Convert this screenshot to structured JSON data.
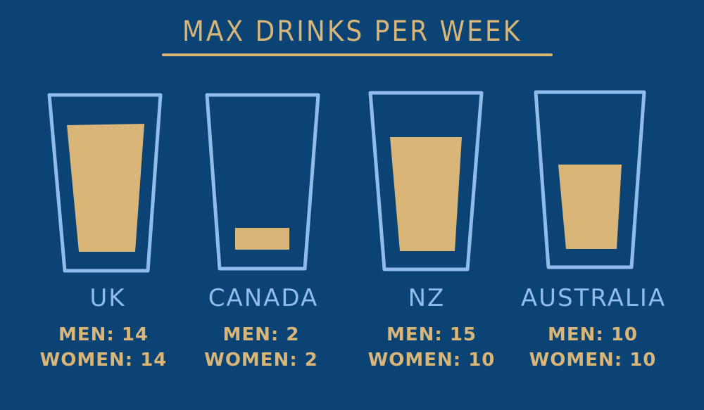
{
  "title": "MAX DRINKS PER WEEK",
  "colors": {
    "background": "#0b4474",
    "glass_outline": "#8fbcec",
    "liquid": "#d9b678",
    "text_country": "#8fbcec",
    "text_stats": "#d9b678"
  },
  "countries": [
    {
      "name": "UK",
      "men_label": "MEN: 14",
      "women_label": "WOMEN: 14",
      "fill_fraction": 0.85
    },
    {
      "name": "CANADA",
      "men_label": "MEN: 2",
      "women_label": "WOMEN: 2",
      "fill_fraction": 0.14
    },
    {
      "name": "NZ",
      "men_label": "MEN: 15",
      "women_label": "WOMEN: 10",
      "fill_fraction": 0.74
    },
    {
      "name": "AUSTRALIA",
      "men_label": "MEN: 10",
      "women_label": "WOMEN: 10",
      "fill_fraction": 0.55
    }
  ]
}
